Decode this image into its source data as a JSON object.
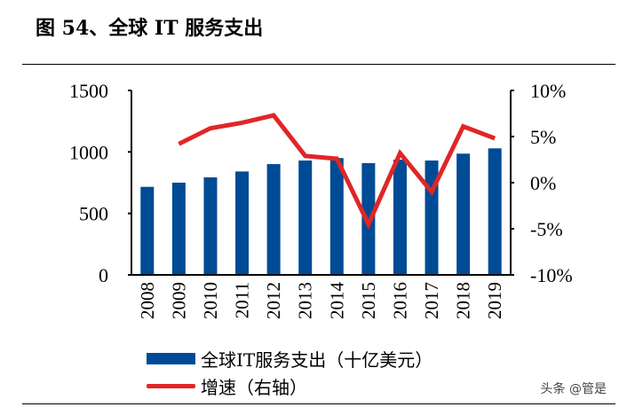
{
  "title": "图 54、全球 IT 服务支出",
  "watermark": "头条 @管是",
  "colors": {
    "bar": "#004b96",
    "line": "#e02626"
  },
  "chart_data": {
    "type": "bar+line",
    "title": "图 54、全球 IT 服务支出",
    "categories": [
      "2008",
      "2009",
      "2010",
      "2011",
      "2012",
      "2013",
      "2014",
      "2015",
      "2016",
      "2017",
      "2018",
      "2019"
    ],
    "series": [
      {
        "name": "全球IT服务支出（十亿美元）",
        "type": "bar",
        "axis": "left",
        "values": [
          716,
          750,
          793,
          841,
          901,
          930,
          950,
          909,
          937,
          930,
          986,
          1029
        ]
      },
      {
        "name": "增速（右轴）",
        "type": "line",
        "axis": "right",
        "values": [
          null,
          4.2,
          5.9,
          6.5,
          7.3,
          2.9,
          2.6,
          -4.5,
          3.2,
          -1.0,
          6.1,
          4.8
        ]
      }
    ],
    "ylim_left": [
      0,
      1500
    ],
    "yticks_left": [
      "0",
      "500",
      "1000",
      "1500"
    ],
    "ylim_right": [
      -10,
      10
    ],
    "yticks_right": [
      "-10%",
      "-5%",
      "0%",
      "5%",
      "10%"
    ],
    "grid": false,
    "legend": "bottom"
  }
}
